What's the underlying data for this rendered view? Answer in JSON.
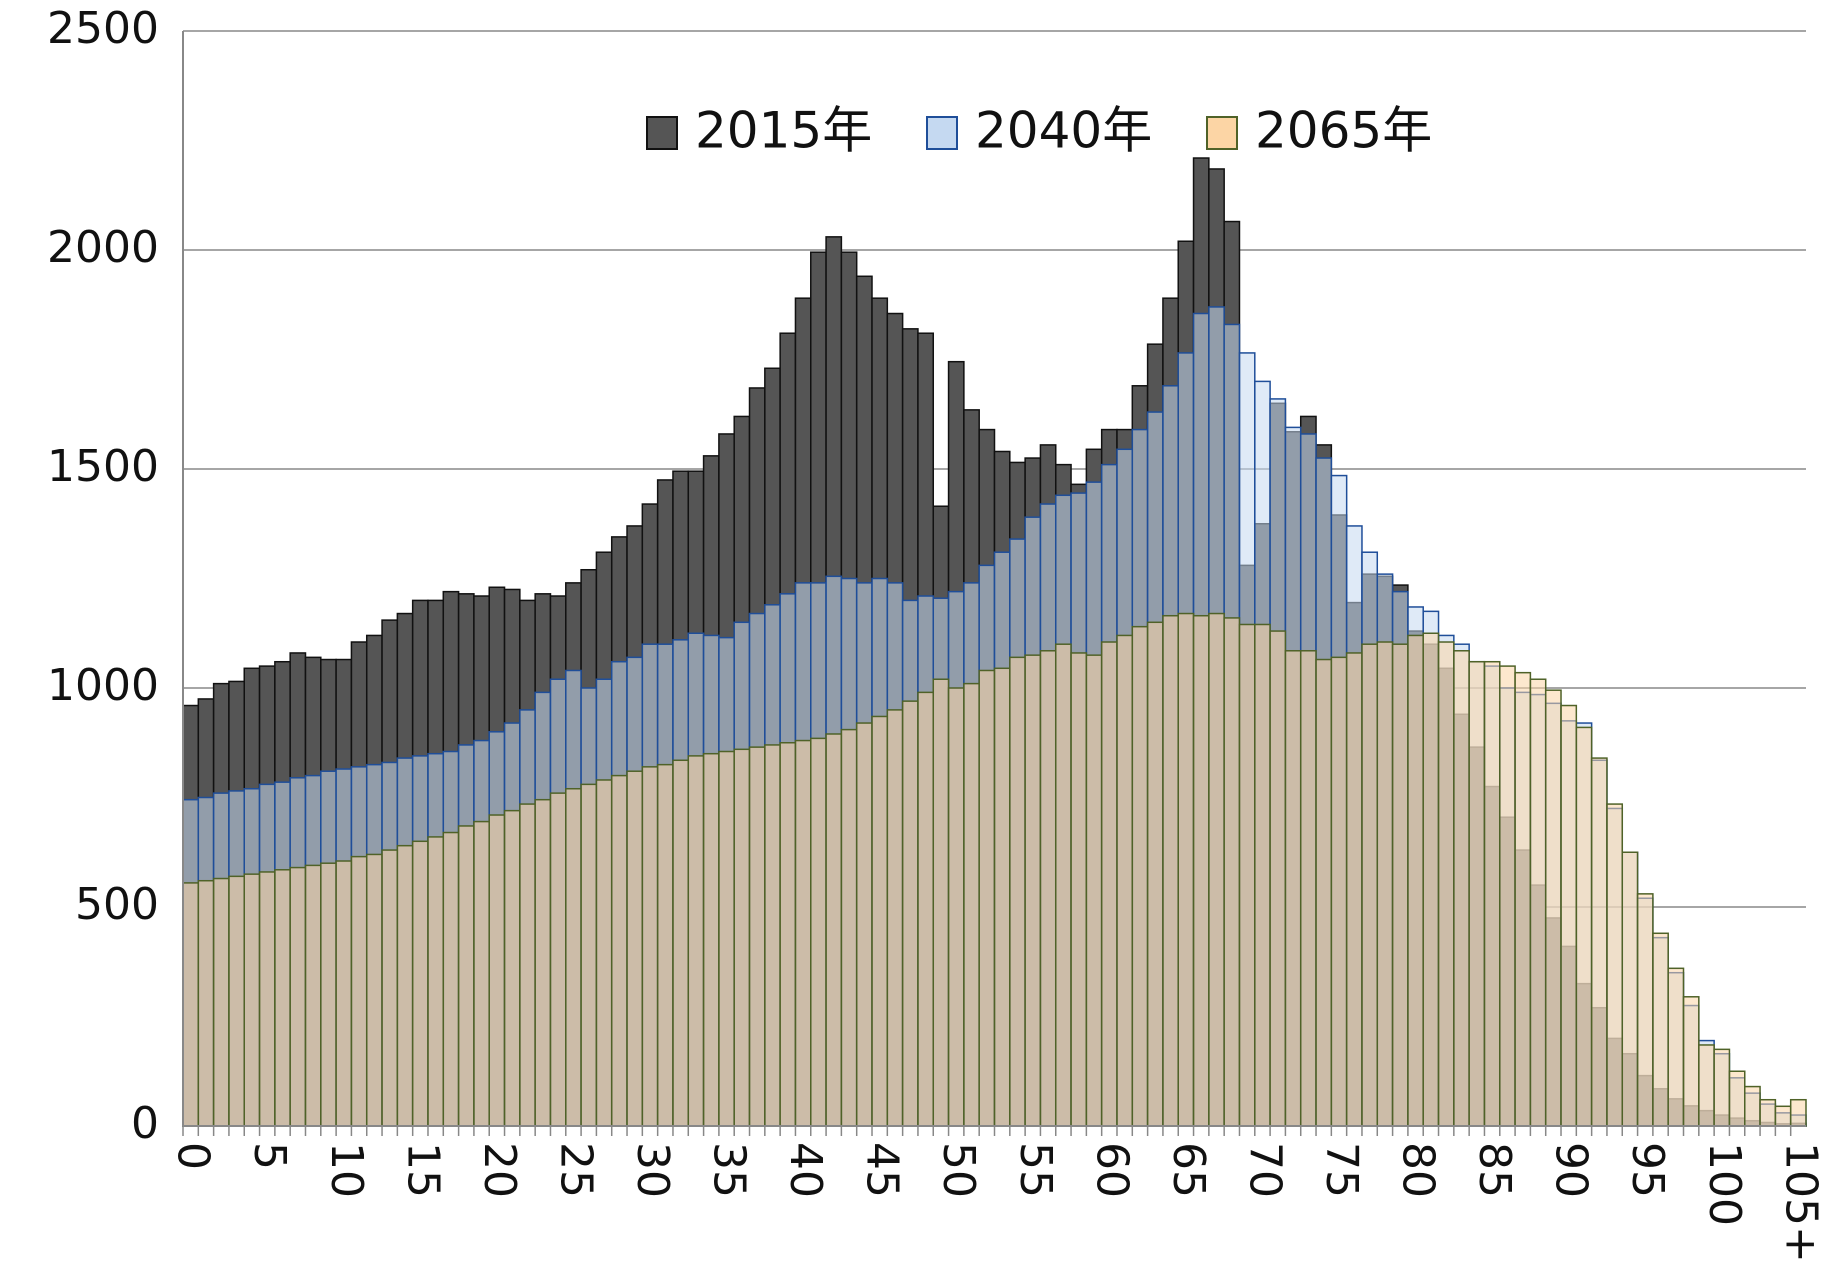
{
  "chart_data": {
    "type": "bar",
    "overlap": true,
    "categories": [
      "0",
      null,
      null,
      null,
      null,
      "5",
      null,
      null,
      null,
      null,
      "10",
      null,
      null,
      null,
      null,
      "15",
      null,
      null,
      null,
      null,
      "20",
      null,
      null,
      null,
      null,
      "25",
      null,
      null,
      null,
      null,
      "30",
      null,
      null,
      null,
      null,
      "35",
      null,
      null,
      null,
      null,
      "40",
      null,
      null,
      null,
      null,
      "45",
      null,
      null,
      null,
      null,
      "50",
      null,
      null,
      null,
      null,
      "55",
      null,
      null,
      null,
      null,
      "60",
      null,
      null,
      null,
      null,
      "65",
      null,
      null,
      null,
      null,
      "70",
      null,
      null,
      null,
      null,
      "75",
      null,
      null,
      null,
      null,
      "80",
      null,
      null,
      null,
      null,
      "85",
      null,
      null,
      null,
      null,
      "90",
      null,
      null,
      null,
      null,
      "95",
      null,
      null,
      null,
      null,
      "100",
      null,
      null,
      null,
      null,
      "105+"
    ],
    "series": [
      {
        "name": "2015年",
        "color": "#555555",
        "stroke": "#111111",
        "opacity": 1,
        "values": [
          960,
          975,
          1010,
          1015,
          1045,
          1050,
          1060,
          1080,
          1070,
          1065,
          1065,
          1105,
          1120,
          1155,
          1170,
          1200,
          1200,
          1220,
          1215,
          1210,
          1230,
          1225,
          1200,
          1215,
          1210,
          1240,
          1270,
          1310,
          1345,
          1370,
          1420,
          1475,
          1495,
          1495,
          1530,
          1580,
          1620,
          1685,
          1730,
          1810,
          1890,
          1995,
          2030,
          1995,
          1940,
          1890,
          1855,
          1820,
          1810,
          1415,
          1745,
          1635,
          1590,
          1540,
          1515,
          1525,
          1555,
          1510,
          1465,
          1545,
          1590,
          1590,
          1690,
          1785,
          1890,
          2020,
          2210,
          2185,
          2065,
          1280,
          1375,
          1650,
          1585,
          1620,
          1555,
          1395,
          1195,
          1260,
          1255,
          1235,
          1130,
          1100,
          1045,
          940,
          865,
          775,
          705,
          630,
          550,
          475,
          410,
          325,
          270,
          200,
          165,
          115,
          85,
          62,
          46,
          35,
          25,
          18,
          12,
          8,
          5,
          6
        ]
      },
      {
        "name": "2040年",
        "color": "#c5d9f1",
        "stroke": "#1f4e99",
        "opacity": 0.55,
        "values": [
          745,
          750,
          760,
          765,
          770,
          780,
          785,
          795,
          800,
          810,
          815,
          820,
          825,
          830,
          840,
          845,
          850,
          855,
          870,
          880,
          900,
          920,
          950,
          990,
          1020,
          1040,
          1000,
          1020,
          1060,
          1070,
          1100,
          1100,
          1110,
          1125,
          1120,
          1115,
          1150,
          1170,
          1190,
          1215,
          1240,
          1240,
          1255,
          1250,
          1240,
          1250,
          1240,
          1200,
          1210,
          1205,
          1220,
          1240,
          1280,
          1310,
          1340,
          1390,
          1420,
          1440,
          1445,
          1470,
          1510,
          1545,
          1590,
          1630,
          1690,
          1765,
          1855,
          1870,
          1830,
          1765,
          1700,
          1660,
          1595,
          1580,
          1525,
          1485,
          1370,
          1310,
          1260,
          1220,
          1185,
          1175,
          1120,
          1100,
          1060,
          1050,
          1000,
          990,
          985,
          965,
          925,
          920,
          835,
          725,
          625,
          520,
          430,
          350,
          275,
          195,
          165,
          110,
          75,
          50,
          30,
          25
        ]
      },
      {
        "name": "2065年",
        "color": "#fcd5a5",
        "stroke": "#4f6228",
        "opacity": 0.55,
        "values": [
          555,
          560,
          565,
          570,
          575,
          580,
          585,
          590,
          595,
          600,
          605,
          615,
          620,
          630,
          640,
          650,
          660,
          670,
          685,
          695,
          710,
          720,
          735,
          745,
          760,
          770,
          780,
          790,
          800,
          810,
          820,
          825,
          835,
          845,
          850,
          855,
          860,
          865,
          870,
          875,
          880,
          885,
          895,
          905,
          920,
          935,
          950,
          970,
          990,
          1020,
          1000,
          1010,
          1040,
          1045,
          1070,
          1075,
          1085,
          1100,
          1080,
          1075,
          1105,
          1120,
          1140,
          1150,
          1165,
          1170,
          1165,
          1170,
          1160,
          1145,
          1145,
          1130,
          1085,
          1085,
          1065,
          1070,
          1080,
          1100,
          1105,
          1100,
          1120,
          1125,
          1105,
          1085,
          1060,
          1060,
          1050,
          1035,
          1020,
          995,
          960,
          910,
          840,
          735,
          625,
          530,
          440,
          360,
          295,
          185,
          175,
          125,
          90,
          60,
          45,
          60
        ]
      }
    ],
    "ylim": [
      0,
      2500
    ],
    "yticks": [
      0,
      500,
      1000,
      1500,
      2000,
      2500
    ],
    "grid": true,
    "legend": "top"
  }
}
